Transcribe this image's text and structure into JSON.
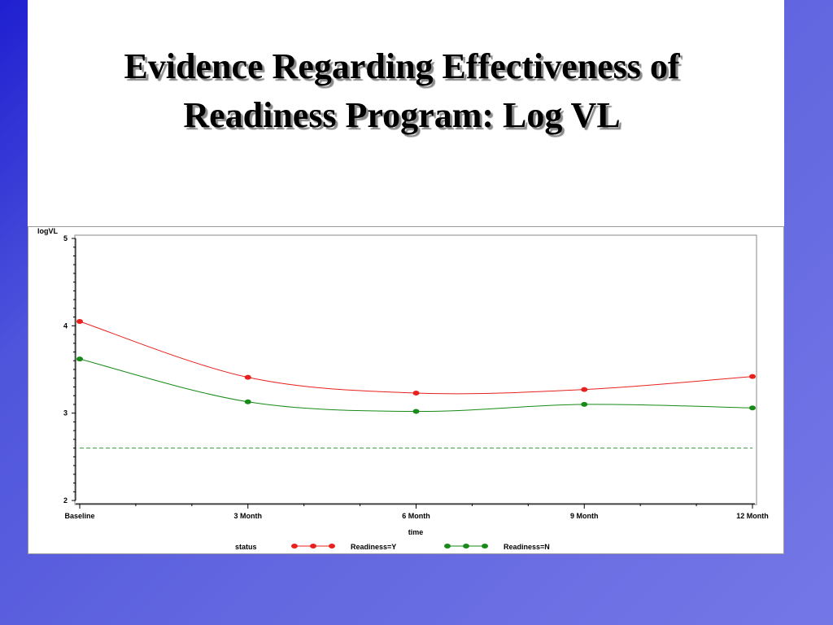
{
  "slide": {
    "title_line1": "Evidence Regarding Effectiveness of",
    "title_line2": "Readiness Program: Log VL"
  },
  "chart_data": {
    "type": "line",
    "title": "",
    "xlabel": "time",
    "ylabel": "logVL",
    "categories": [
      "Baseline",
      "3  Month",
      "6  Month",
      "9  Month",
      "12  Month"
    ],
    "x": [
      0,
      3,
      6,
      9,
      12
    ],
    "ylim": [
      2,
      5
    ],
    "yticks": [
      2,
      3,
      4,
      5
    ],
    "grid": false,
    "legend": {
      "title": "status",
      "placement": "bottom"
    },
    "reference_line": {
      "y": 2.6,
      "style": "dashed",
      "color": "#3a9a3a"
    },
    "series": [
      {
        "name": "Readiness=Y",
        "values": [
          4.05,
          3.41,
          3.23,
          3.27,
          3.42
        ],
        "color": "#e8201e"
      },
      {
        "name": "Readiness=N",
        "values": [
          3.62,
          3.13,
          3.02,
          3.1,
          3.06
        ],
        "color": "#178a17"
      }
    ]
  }
}
